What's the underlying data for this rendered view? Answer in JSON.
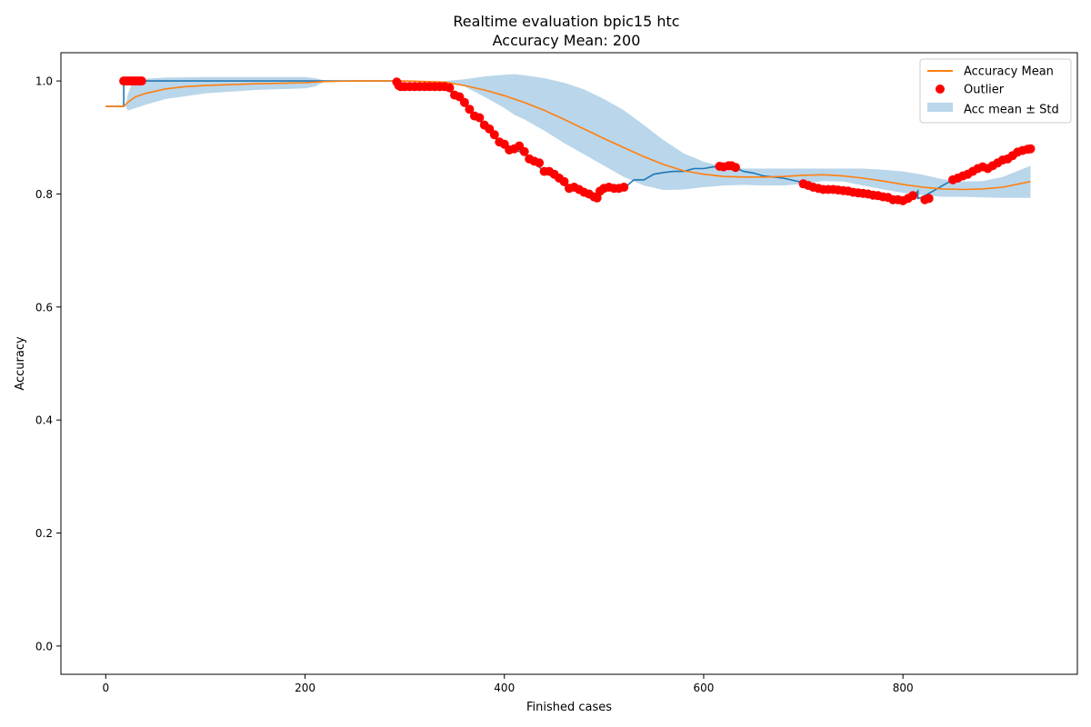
{
  "chart_data": {
    "type": "line",
    "title": "Realtime evaluation bpic15 htc",
    "subtitle": "Accuracy Mean: 200",
    "xlabel": "Finished cases",
    "ylabel": "Accuracy",
    "xlim": [
      -45,
      975
    ],
    "ylim": [
      -0.05,
      1.05
    ],
    "x_ticks": [
      0,
      200,
      400,
      600,
      800
    ],
    "y_ticks": [
      0.0,
      0.2,
      0.4,
      0.6,
      0.8,
      1.0
    ],
    "x_tick_labels": [
      "0",
      "200",
      "400",
      "600",
      "800"
    ],
    "y_tick_labels": [
      "0.0",
      "0.2",
      "0.4",
      "0.6",
      "0.8",
      "1.0"
    ],
    "grid": false,
    "legend_position": "top-right",
    "legend": [
      {
        "label": "Accuracy Mean",
        "kind": "line",
        "color": "#ff7f0e"
      },
      {
        "label": "Outlier",
        "kind": "marker",
        "color": "#ff0000"
      },
      {
        "label": "Acc mean ± Std",
        "kind": "patch",
        "color": "#bad6ea"
      }
    ],
    "colors": {
      "accuracy": "#1f77b4",
      "mean": "#ff7f0e",
      "outlier": "#ff0000",
      "band": "#bad6ea"
    },
    "series": [
      {
        "role": "accuracy",
        "x": [
          0,
          18,
          18,
          22,
          150,
          290,
          295,
          340,
          350,
          360,
          370,
          380,
          390,
          400,
          410,
          420,
          430,
          440,
          450,
          460,
          470,
          480,
          490,
          500,
          510,
          520,
          530,
          540,
          550,
          560,
          570,
          580,
          590,
          600,
          610,
          620,
          630,
          640,
          650,
          660,
          680,
          700,
          720,
          740,
          760,
          780,
          800,
          810,
          815,
          815,
          820,
          830,
          840,
          850,
          860,
          870,
          880,
          890,
          900,
          910,
          920,
          928
        ],
        "y": [
          0.955,
          0.955,
          1.0,
          1.0,
          1.0,
          1.0,
          0.99,
          0.99,
          0.975,
          0.96,
          0.94,
          0.92,
          0.9,
          0.885,
          0.88,
          0.87,
          0.855,
          0.84,
          0.83,
          0.815,
          0.808,
          0.805,
          0.795,
          0.81,
          0.81,
          0.81,
          0.825,
          0.825,
          0.835,
          0.838,
          0.84,
          0.84,
          0.845,
          0.845,
          0.848,
          0.85,
          0.848,
          0.84,
          0.837,
          0.832,
          0.828,
          0.82,
          0.81,
          0.807,
          0.803,
          0.797,
          0.79,
          0.795,
          0.805,
          0.792,
          0.795,
          0.805,
          0.815,
          0.825,
          0.835,
          0.845,
          0.848,
          0.855,
          0.862,
          0.872,
          0.878,
          0.88
        ]
      },
      {
        "role": "mean",
        "name": "Accuracy Mean",
        "x": [
          0,
          18,
          22,
          30,
          40,
          60,
          80,
          100,
          150,
          200,
          220,
          250,
          300,
          340,
          360,
          380,
          400,
          420,
          440,
          460,
          480,
          500,
          520,
          540,
          560,
          580,
          600,
          620,
          640,
          660,
          680,
          700,
          720,
          740,
          760,
          780,
          800,
          820,
          840,
          860,
          880,
          900,
          928
        ],
        "y": [
          0.955,
          0.955,
          0.962,
          0.972,
          0.978,
          0.986,
          0.99,
          0.992,
          0.995,
          0.997,
          0.999,
          1.0,
          1.0,
          0.998,
          0.992,
          0.984,
          0.974,
          0.962,
          0.948,
          0.932,
          0.915,
          0.898,
          0.882,
          0.866,
          0.852,
          0.841,
          0.835,
          0.831,
          0.83,
          0.83,
          0.831,
          0.833,
          0.834,
          0.832,
          0.828,
          0.823,
          0.817,
          0.812,
          0.809,
          0.808,
          0.809,
          0.812,
          0.822
        ]
      },
      {
        "role": "band",
        "name": "Acc mean ± Std",
        "x": [
          20,
          22,
          25,
          30,
          40,
          60,
          100,
          150,
          200,
          210,
          215,
          220,
          230,
          280,
          340,
          360,
          380,
          400,
          410,
          420,
          440,
          460,
          480,
          500,
          520,
          540,
          560,
          580,
          600,
          620,
          640,
          660,
          680,
          700,
          720,
          740,
          760,
          780,
          800,
          820,
          840,
          860,
          880,
          900,
          928
        ],
        "upper": [
          0.955,
          0.975,
          0.99,
          1.0,
          1.004,
          1.006,
          1.007,
          1.007,
          1.007,
          1.005,
          1.003,
          1.0,
          1.0,
          1.0,
          1.0,
          1.003,
          1.008,
          1.011,
          1.012,
          1.01,
          1.005,
          0.997,
          0.985,
          0.968,
          0.948,
          0.922,
          0.895,
          0.872,
          0.857,
          0.848,
          0.845,
          0.845,
          0.845,
          0.845,
          0.845,
          0.845,
          0.845,
          0.843,
          0.84,
          0.834,
          0.826,
          0.822,
          0.823,
          0.83,
          0.85
        ],
        "lower": [
          0.955,
          0.948,
          0.949,
          0.952,
          0.958,
          0.968,
          0.978,
          0.984,
          0.987,
          0.99,
          0.995,
          0.998,
          1.0,
          1.0,
          1.0,
          0.99,
          0.972,
          0.952,
          0.94,
          0.932,
          0.912,
          0.89,
          0.87,
          0.85,
          0.83,
          0.815,
          0.807,
          0.808,
          0.812,
          0.815,
          0.816,
          0.815,
          0.815,
          0.818,
          0.823,
          0.822,
          0.815,
          0.808,
          0.802,
          0.798,
          0.795,
          0.795,
          0.794,
          0.793,
          0.793
        ]
      }
    ],
    "outliers": {
      "name": "Outlier",
      "x": [
        18,
        20,
        22,
        24,
        26,
        28,
        30,
        32,
        34,
        36,
        292,
        294,
        296,
        300,
        305,
        310,
        315,
        320,
        325,
        330,
        335,
        340,
        345,
        350,
        355,
        360,
        365,
        370,
        375,
        380,
        385,
        390,
        395,
        400,
        405,
        410,
        415,
        420,
        425,
        430,
        435,
        440,
        445,
        450,
        455,
        460,
        465,
        470,
        475,
        480,
        485,
        490,
        493,
        496,
        500,
        505,
        510,
        515,
        520,
        616,
        620,
        625,
        628,
        632,
        700,
        705,
        710,
        715,
        720,
        725,
        730,
        735,
        740,
        745,
        750,
        755,
        760,
        765,
        770,
        775,
        780,
        785,
        790,
        795,
        800,
        805,
        810,
        822,
        826,
        850,
        855,
        860,
        865,
        870,
        875,
        880,
        885,
        890,
        895,
        900,
        905,
        910,
        915,
        920,
        925,
        928
      ],
      "y": [
        1.0,
        1.0,
        1.0,
        1.0,
        1.0,
        1.0,
        1.0,
        1.0,
        1.0,
        1.0,
        0.998,
        0.992,
        0.99,
        0.99,
        0.99,
        0.99,
        0.99,
        0.99,
        0.99,
        0.99,
        0.99,
        0.99,
        0.988,
        0.975,
        0.972,
        0.962,
        0.95,
        0.938,
        0.935,
        0.922,
        0.915,
        0.905,
        0.892,
        0.888,
        0.878,
        0.88,
        0.885,
        0.875,
        0.862,
        0.858,
        0.855,
        0.84,
        0.84,
        0.835,
        0.828,
        0.822,
        0.81,
        0.812,
        0.808,
        0.803,
        0.8,
        0.795,
        0.793,
        0.805,
        0.81,
        0.812,
        0.81,
        0.81,
        0.812,
        0.849,
        0.848,
        0.85,
        0.85,
        0.847,
        0.818,
        0.815,
        0.812,
        0.81,
        0.808,
        0.808,
        0.808,
        0.807,
        0.806,
        0.805,
        0.803,
        0.802,
        0.801,
        0.8,
        0.798,
        0.797,
        0.795,
        0.794,
        0.79,
        0.79,
        0.788,
        0.792,
        0.797,
        0.79,
        0.792,
        0.825,
        0.828,
        0.832,
        0.835,
        0.84,
        0.845,
        0.848,
        0.845,
        0.85,
        0.855,
        0.86,
        0.862,
        0.868,
        0.874,
        0.877,
        0.879,
        0.88
      ]
    }
  }
}
